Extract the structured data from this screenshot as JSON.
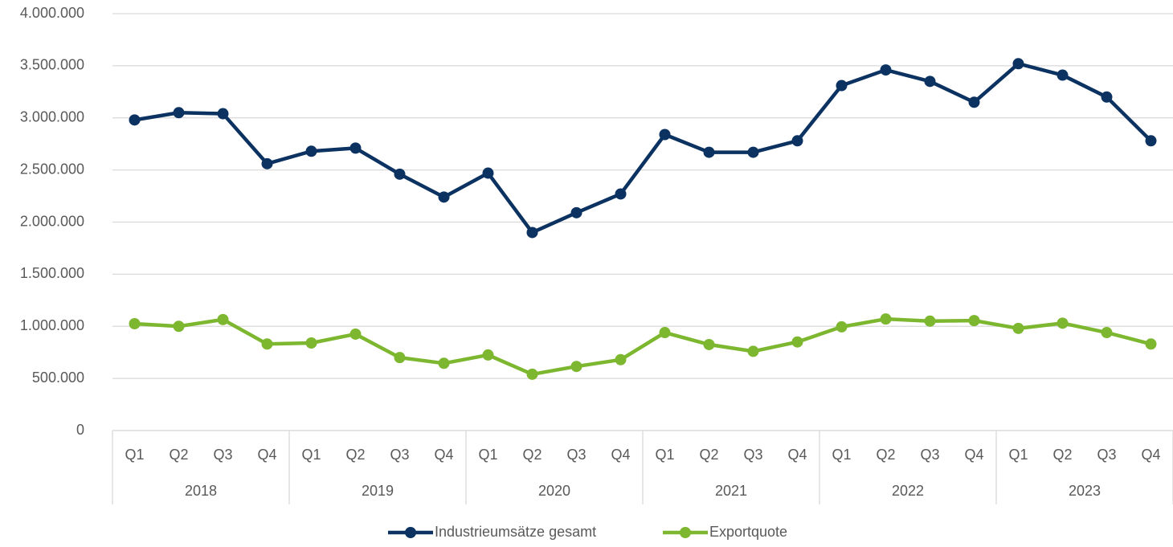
{
  "chart_data": {
    "type": "line",
    "categories": [
      "Q1",
      "Q2",
      "Q3",
      "Q4",
      "Q1",
      "Q2",
      "Q3",
      "Q4",
      "Q1",
      "Q2",
      "Q3",
      "Q4",
      "Q1",
      "Q2",
      "Q3",
      "Q4",
      "Q1",
      "Q2",
      "Q3",
      "Q4",
      "Q1",
      "Q2",
      "Q3",
      "Q4"
    ],
    "category_groups": [
      "2018",
      "2019",
      "2020",
      "2021",
      "2022",
      "2023"
    ],
    "series": [
      {
        "name": "Industrieumsätze gesamt",
        "color": "#0b3261",
        "values": [
          2980000,
          3050000,
          3040000,
          2560000,
          2680000,
          2710000,
          2460000,
          2240000,
          2470000,
          1900000,
          2090000,
          2270000,
          2840000,
          2670000,
          2670000,
          2780000,
          3310000,
          3460000,
          3350000,
          3150000,
          3520000,
          3410000,
          3200000,
          2780000
        ]
      },
      {
        "name": "Exportquote",
        "color": "#7db72f",
        "values": [
          1025000,
          1000000,
          1065000,
          830000,
          840000,
          925000,
          700000,
          645000,
          725000,
          540000,
          615000,
          680000,
          940000,
          825000,
          760000,
          850000,
          995000,
          1070000,
          1050000,
          1055000,
          980000,
          1030000,
          940000,
          830000
        ]
      }
    ],
    "ylim": [
      0,
      4000000
    ],
    "yticks": [
      0,
      {
        "value": 500000,
        "label": "500.000"
      },
      {
        "value": 1000000,
        "label": "1.000.000"
      },
      {
        "value": 1500000,
        "label": "1.500.000"
      },
      {
        "value": 2000000,
        "label": "2.000.000"
      },
      {
        "value": 2500000,
        "label": "2.500.000"
      },
      {
        "value": 3000000,
        "label": "3.000.000"
      },
      {
        "value": 3500000,
        "label": "3.500.000"
      },
      {
        "value": 4000000,
        "label": "4.000.000"
      }
    ],
    "grid": true,
    "legend": "bottom"
  }
}
